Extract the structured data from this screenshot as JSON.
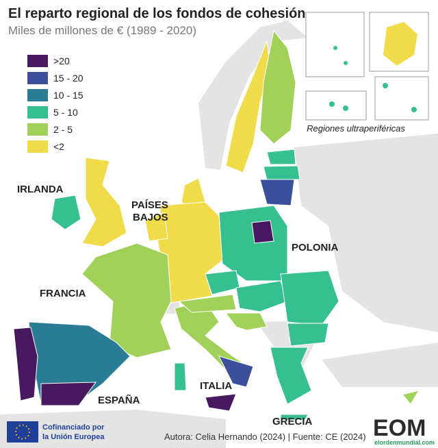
{
  "header": {
    "title": "El reparto regional de los fondos de cohesión",
    "subtitle": "Miles de millones de € (1989 - 2020)"
  },
  "legend": [
    {
      "label": ">20",
      "color": "#47195e"
    },
    {
      "label": "15 - 20",
      "color": "#3b4f9b"
    },
    {
      "label": "10 - 15",
      "color": "#2a7c95"
    },
    {
      "label": "5 - 10",
      "color": "#37c08f"
    },
    {
      "label": "2 - 5",
      "color": "#a2d15a"
    },
    {
      "label": "<2",
      "color": "#f0db4b"
    }
  ],
  "map_labels": {
    "ireland": "IRLANDA",
    "netherlands": [
      "PAÍSES",
      "BAJOS"
    ],
    "france": "FRANCIA",
    "poland": "POLONIA",
    "italy": "ITALIA",
    "spain": "ESPAÑA",
    "greece": "GRECIA"
  },
  "insets": {
    "caption": "Regiones ultraperiféricas"
  },
  "footer": {
    "eu_line1": "Cofinanciado por",
    "eu_line2": "la Unión Europea",
    "credit": "Autora: Celia Hernando (2024) | Fuente: CE (2024)"
  },
  "logo": {
    "mark": "EOM",
    "site": "elordenmundial.com"
  }
}
